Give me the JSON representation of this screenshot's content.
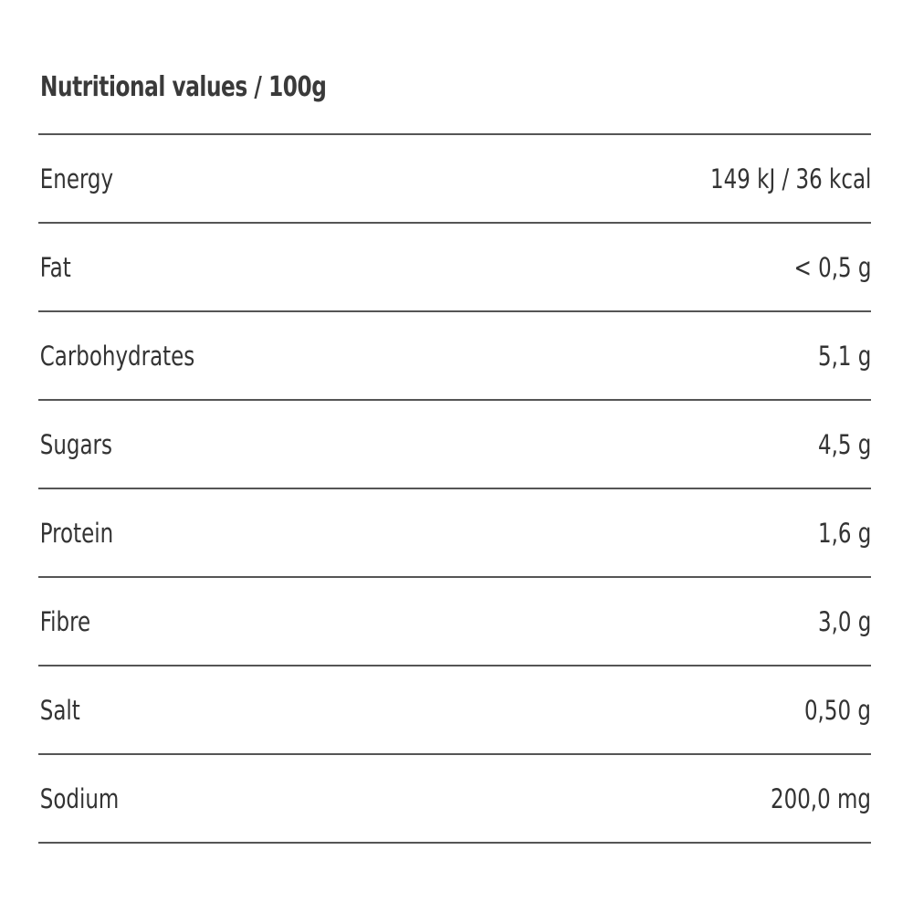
{
  "header": {
    "title": "Nutritional values / 100g"
  },
  "table": {
    "rows": [
      [
        "Energy",
        "149 kJ / 36 kcal"
      ],
      [
        "Fat",
        "< 0,5 g"
      ],
      [
        "Carbohydrates",
        "5,1 g"
      ],
      [
        "Sugars",
        "4,5 g"
      ],
      [
        "Protein",
        "1,6 g"
      ],
      [
        "Fibre",
        "3,0 g"
      ],
      [
        "Salt",
        "0,50 g"
      ],
      [
        "Sodium",
        "200,0 mg"
      ]
    ]
  }
}
